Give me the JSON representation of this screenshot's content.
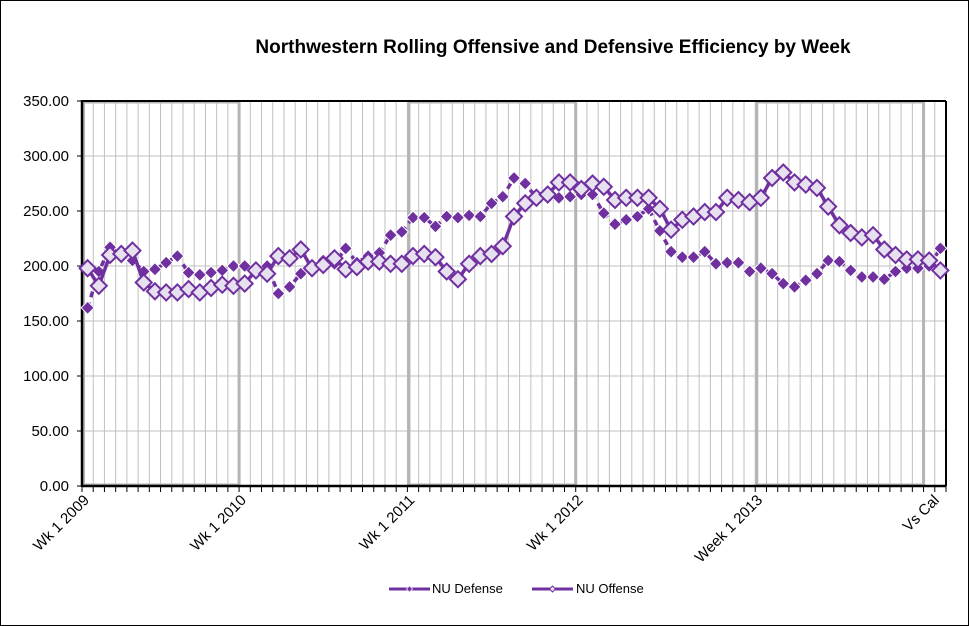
{
  "chart_data": {
    "type": "line",
    "title": "Northwestern  Rolling  Offensive and Defensive Efficiency  by Week",
    "xlabel": "",
    "ylabel": "",
    "ylim": [
      0,
      350
    ],
    "yticks": [
      0,
      50,
      100,
      150,
      200,
      250,
      300,
      350
    ],
    "ytick_labels": [
      "0.00",
      "50.00",
      "100.00",
      "150.00",
      "200.00",
      "250.00",
      "300.00",
      "350.00"
    ],
    "category_count": 77,
    "x_labels": [
      {
        "index": 0,
        "label": "Wk 1 2009"
      },
      {
        "index": 14,
        "label": "Wk 1 2010"
      },
      {
        "index": 29,
        "label": "Wk 1 2011"
      },
      {
        "index": 44,
        "label": "Wk 1 2012"
      },
      {
        "index": 60,
        "label": "Week 1 2013"
      },
      {
        "index": 76,
        "label": "Vs Cal"
      }
    ],
    "season_boxes": [
      {
        "start": 0,
        "end": 14
      },
      {
        "start": 29,
        "end": 44
      },
      {
        "start": 60,
        "end": 75
      }
    ],
    "grid": true,
    "legend_position": "bottom",
    "series": [
      {
        "name": "NU Defense",
        "color": "#7030a0",
        "marker": "filled-diamond",
        "line": "dashed",
        "values": [
          162,
          195,
          217,
          210,
          205,
          195,
          197,
          203,
          209,
          194,
          192,
          194,
          196,
          200,
          200,
          194,
          200,
          175,
          181,
          193,
          199,
          205,
          202,
          216,
          203,
          209,
          212,
          228,
          231,
          244,
          244,
          236,
          245,
          244,
          246,
          245,
          257,
          263,
          280,
          275,
          262,
          262,
          262,
          263,
          265,
          265,
          248,
          238,
          242,
          245,
          252,
          232,
          213,
          208,
          208,
          213,
          202,
          203,
          203,
          195,
          198,
          193,
          184,
          181,
          187,
          193,
          205,
          204,
          196,
          190,
          190,
          188,
          195,
          198,
          198,
          200,
          216
        ]
      },
      {
        "name": "NU Offense",
        "color": "#7030a0",
        "marker": "hollow-diamond",
        "marker_fill": "#e6e0ef",
        "line": "solid",
        "values": [
          198,
          182,
          210,
          211,
          214,
          185,
          177,
          176,
          176,
          179,
          176,
          180,
          183,
          182,
          184,
          196,
          193,
          209,
          207,
          215,
          198,
          201,
          207,
          197,
          199,
          204,
          204,
          202,
          202,
          209,
          211,
          208,
          195,
          188,
          202,
          209,
          211,
          218,
          245,
          257,
          262,
          265,
          276,
          276,
          270,
          275,
          272,
          260,
          262,
          262,
          262,
          252,
          233,
          242,
          245,
          249,
          249,
          262,
          260,
          258,
          262,
          280,
          285,
          276,
          274,
          271,
          254,
          237,
          230,
          226,
          228,
          215,
          210,
          206,
          206,
          205,
          196
        ]
      }
    ]
  }
}
